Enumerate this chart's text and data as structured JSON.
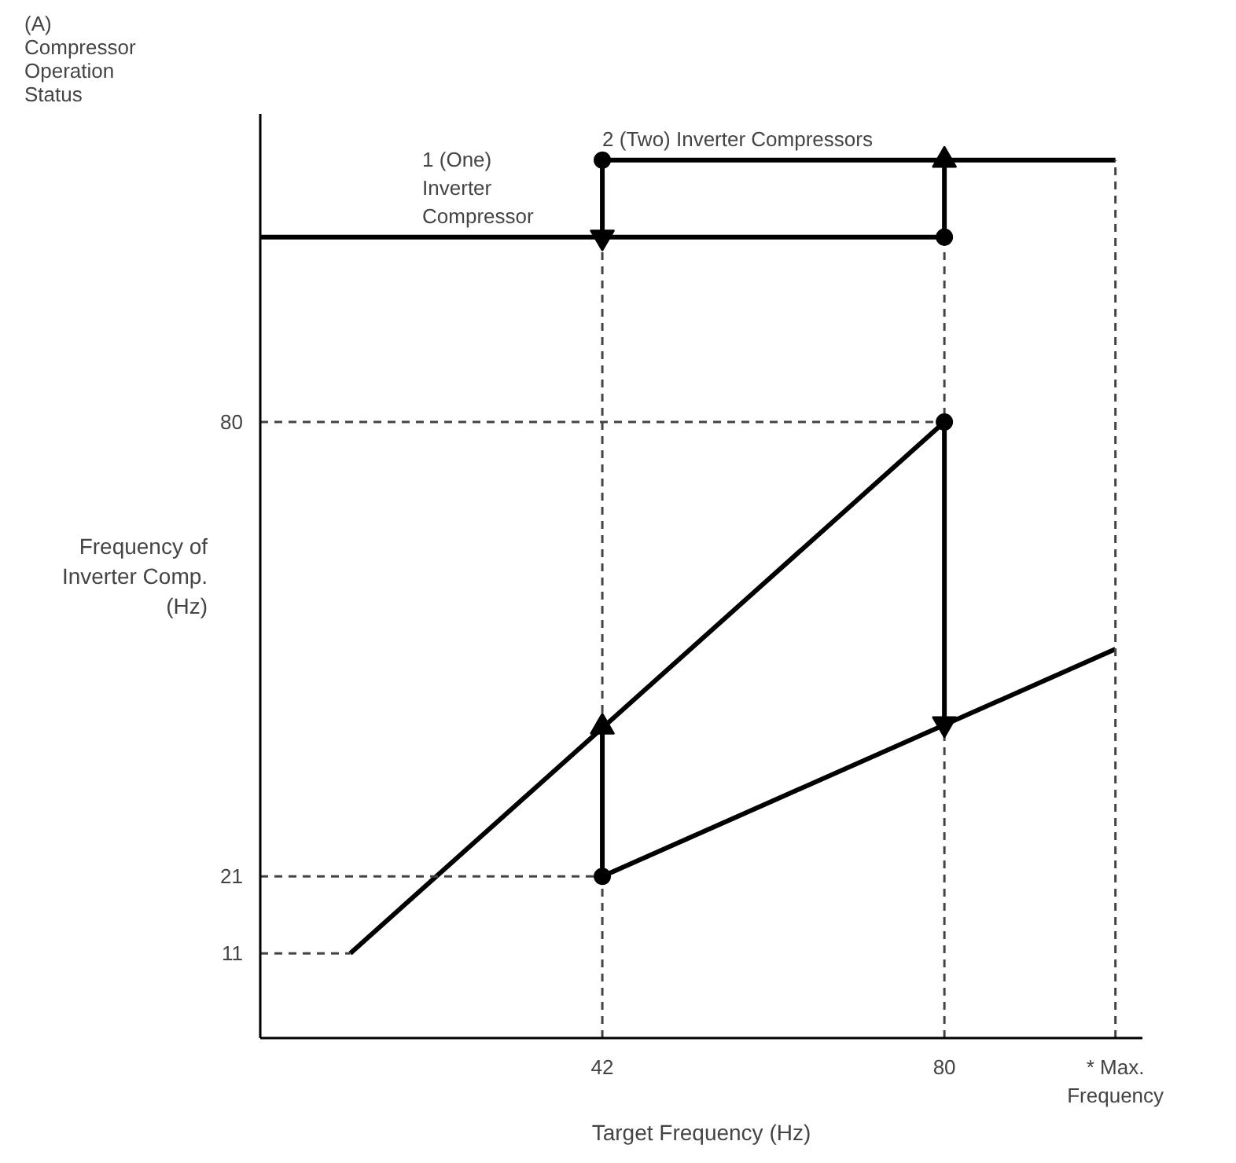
{
  "chart_data": {
    "type": "line",
    "xlabel": "Target Frequency (Hz)",
    "ylabel": "Frequency of\nInverter Comp.\n(Hz)",
    "xlim": [
      4,
      102
    ],
    "ylim": [
      0,
      120
    ],
    "xticks": [
      42,
      80,
      {
        "value": 99,
        "label": "* Max.\nFrequency"
      }
    ],
    "yticks": [
      11,
      21,
      80
    ],
    "grid": false,
    "annotations": [
      "(A)\nCompressor\nOperation\nStatus",
      {
        "text": "1 (One)\nInverter\nCompressor",
        "x": 22,
        "y": 104
      },
      {
        "text": "2 (Two) Inverter Compressors",
        "x": 42,
        "y": 114
      }
    ],
    "series": [
      {
        "color": "#000000",
        "x": [
          14,
          80
        ],
        "values": [
          11,
          80
        ]
      },
      {
        "color": "#000000",
        "x": [
          42,
          99
        ],
        "values": [
          21,
          50.5
        ]
      },
      {
        "color": "#000000",
        "x": [
          4,
          80
        ],
        "values": [
          104,
          104
        ]
      },
      {
        "color": "#000000",
        "x": [
          42,
          99
        ],
        "values": [
          114,
          114
        ]
      },
      {
        "type": "line",
        "color": "#444444",
        "line_style": "dashed",
        "x": [
          42,
          42
        ],
        "values": [
          0,
          114
        ]
      },
      {
        "type": "line",
        "color": "#444444",
        "line_style": "dashed",
        "x": [
          80,
          80
        ],
        "values": [
          0,
          114
        ]
      },
      {
        "type": "line",
        "color": "#444444",
        "line_style": "dashed",
        "x": [
          99,
          99
        ],
        "values": [
          0,
          114
        ]
      },
      {
        "type": "line",
        "color": "#444444",
        "line_style": "dashed",
        "x": [
          4,
          80
        ],
        "values": [
          80,
          80
        ]
      },
      {
        "type": "line",
        "color": "#444444",
        "line_style": "dashed",
        "x": [
          4,
          42
        ],
        "values": [
          21,
          21
        ]
      },
      {
        "type": "line",
        "color": "#444444",
        "line_style": "dashed",
        "x": [
          4,
          14
        ],
        "values": [
          11,
          11
        ]
      },
      {
        "type": "line",
        "marker": "triangle",
        "color": "#000000",
        "x": [
          42,
          42
        ],
        "values": [
          21,
          40.4
        ]
      },
      {
        "type": "line",
        "marker": "triangle",
        "color": "#000000",
        "x": [
          80,
          80
        ],
        "values": [
          80,
          40.8
        ]
      },
      {
        "type": "line",
        "marker": "triangle",
        "color": "#000000",
        "x": [
          42,
          42
        ],
        "values": [
          114,
          104
        ]
      },
      {
        "type": "line",
        "marker": "triangle",
        "color": "#000000",
        "x": [
          80,
          80
        ],
        "values": [
          104,
          114
        ]
      },
      {
        "type": "scatter",
        "color": "#000000",
        "marker": "circle",
        "x": [
          42,
          80,
          42,
          80
        ],
        "values": [
          21,
          80,
          114,
          104
        ]
      }
    ]
  }
}
